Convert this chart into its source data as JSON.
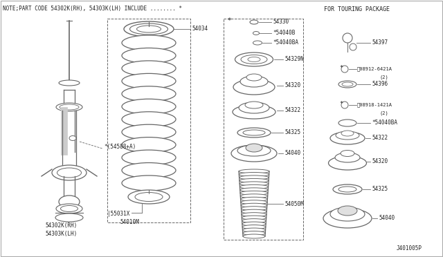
{
  "bg_color": "#ffffff",
  "line_color": "#666666",
  "text_color": "#222222",
  "note_text": "NOTE;PART CODE 54302K(RH), 54303K(LH) INCLUDE ........ *",
  "diagram_id": "J401005P",
  "section_title": "FOR TOURING PACKAGE",
  "figsize": [
    6.4,
    3.72
  ],
  "dpi": 100
}
